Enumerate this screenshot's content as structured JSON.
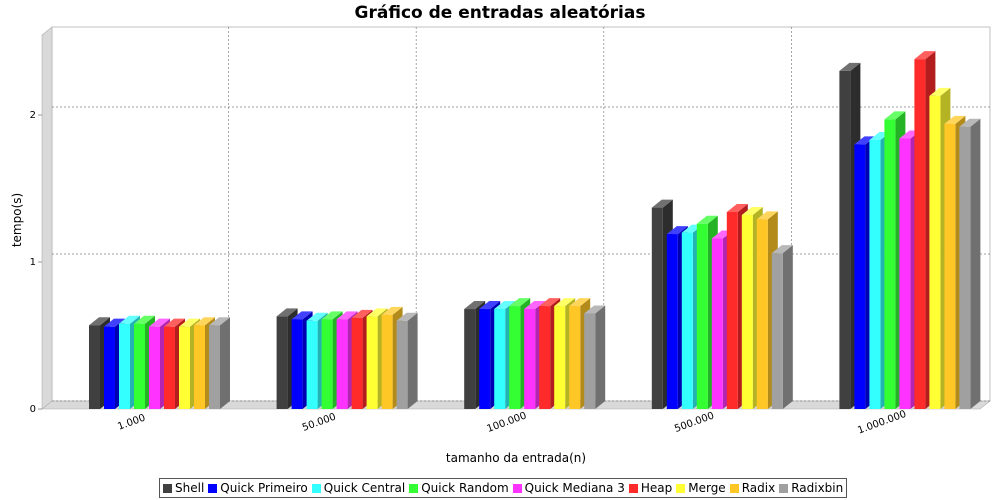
{
  "chart_data": {
    "type": "bar",
    "title": "Gráfico de entradas aleatórias",
    "xlabel": "tamanho da entrada(n)",
    "ylabel": "tempo(s)",
    "categories": [
      "1.000",
      "50.000",
      "100.000",
      "500.000",
      "1.000.000"
    ],
    "ylim": [
      0,
      2.5
    ],
    "yticks": [
      "0",
      "1",
      "2"
    ],
    "grid": true,
    "legend_position": "bottom",
    "series": [
      {
        "name": "Shell",
        "color": "#404040",
        "values": [
          0.57,
          0.63,
          0.68,
          1.37,
          2.3
        ]
      },
      {
        "name": "Quick Primeiro",
        "color": "#0000ff",
        "values": [
          0.56,
          0.61,
          0.68,
          1.19,
          1.8
        ]
      },
      {
        "name": "Quick Central",
        "color": "#33ffff",
        "values": [
          0.58,
          0.6,
          0.68,
          1.2,
          1.83
        ]
      },
      {
        "name": "Quick Random",
        "color": "#33ff33",
        "values": [
          0.58,
          0.61,
          0.7,
          1.26,
          1.97
        ]
      },
      {
        "name": "Quick Mediana 3",
        "color": "#ff33ff",
        "values": [
          0.56,
          0.61,
          0.68,
          1.16,
          1.84
        ]
      },
      {
        "name": "Heap",
        "color": "#ff2a2a",
        "values": [
          0.56,
          0.62,
          0.7,
          1.34,
          2.38
        ]
      },
      {
        "name": "Merge",
        "color": "#ffff33",
        "values": [
          0.56,
          0.63,
          0.7,
          1.32,
          2.13
        ]
      },
      {
        "name": "Radix",
        "color": "#ffc726",
        "values": [
          0.57,
          0.64,
          0.7,
          1.29,
          1.94
        ]
      },
      {
        "name": "Radixbin",
        "color": "#a0a0a0",
        "values": [
          0.57,
          0.6,
          0.65,
          1.06,
          1.92
        ]
      }
    ]
  }
}
